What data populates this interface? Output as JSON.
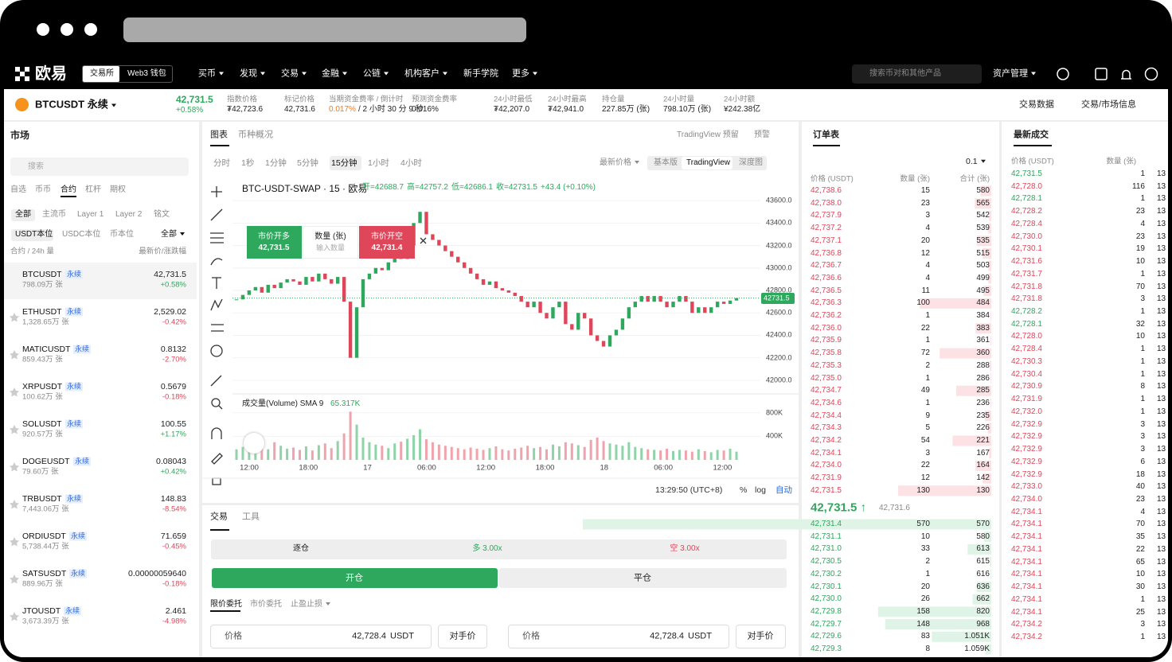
{
  "nav": {
    "logo": "欧易",
    "tabs": [
      "交易所",
      "Web3 钱包"
    ],
    "menu": [
      "买币",
      "发现",
      "交易",
      "金融",
      "公链",
      "机构客户",
      "新手学院",
      "更多"
    ],
    "search": "搜索币对和其他产品",
    "assets": "资产管理"
  },
  "ticker": {
    "symbol": "BTCUSDT 永续",
    "price": "42,731.5",
    "change": "+0.58%",
    "stats": [
      {
        "label": "指数价格",
        "value": [
          "₮42,723.6"
        ]
      },
      {
        "label": "标记价格",
        "value": [
          "42,731.6"
        ]
      },
      {
        "label": "当期资金费率 / 倒计时",
        "value": [
          "0.017%",
          "/ 2 小时 30 分 9 秒"
        ]
      },
      {
        "label": "预测资金费率",
        "value": [
          "0.016%"
        ]
      },
      {
        "label": "24小时最低",
        "value": [
          "₮42,207.0"
        ]
      },
      {
        "label": "24小时最高",
        "value": [
          "₮42,941.0"
        ]
      },
      {
        "label": "持仓量",
        "value": [
          "227.85万 (张)"
        ]
      },
      {
        "label": "24小时量",
        "value": [
          "798.10万 (张)"
        ]
      },
      {
        "label": "24小时额",
        "value": [
          "¥242.38亿"
        ]
      }
    ],
    "links": [
      "交易数据",
      "交易/市场信息"
    ]
  },
  "market": {
    "title": "市场",
    "search": "搜索",
    "tabs": [
      "自选",
      "币币",
      "合约",
      "杠杆",
      "期权"
    ],
    "subtabs": [
      "全部",
      "主流币",
      "Layer 1",
      "Layer 2",
      "铭文"
    ],
    "filters": [
      "USDT本位",
      "USDC本位",
      "币本位",
      "全部"
    ],
    "headers": [
      "合约 / 24h 量",
      "最新价/涨跌幅"
    ],
    "rows": [
      [
        "BTCUSDT",
        "永续",
        "798.09万 张",
        "42,731.5",
        "+0.58%"
      ],
      [
        "ETHUSDT",
        "永续",
        "1,328.65万 张",
        "2,529.02",
        "-0.42%"
      ],
      [
        "MATICUSDT",
        "永续",
        "859.43万 张",
        "0.8132",
        "-2.70%"
      ],
      [
        "XRPUSDT",
        "永续",
        "100.62万 张",
        "0.5679",
        "-0.18%"
      ],
      [
        "SOLUSDT",
        "永续",
        "920.57万 张",
        "100.55",
        "+1.17%"
      ],
      [
        "DOGEUSDT",
        "永续",
        "79.60万 张",
        "0.08043",
        "+0.42%"
      ],
      [
        "TRBUSDT",
        "永续",
        "7,443.06万 张",
        "148.83",
        "-8.54%"
      ],
      [
        "ORDIUSDT",
        "永续",
        "5,738.44万 张",
        "71.659",
        "-0.45%"
      ],
      [
        "SATSUSDT",
        "永续",
        "889.96万 张",
        "0.00000059640",
        "-0.18%"
      ],
      [
        "JTOUSDT",
        "永续",
        "3,673.39万 张",
        "2.461",
        "-4.98%"
      ]
    ]
  },
  "chart": {
    "tabs": [
      "图表",
      "币种概况"
    ],
    "toolbar_right": [
      "TradingView 预留",
      "预警"
    ],
    "intervals": [
      "分时",
      "1秒",
      "1分钟",
      "5分钟",
      "15分钟",
      "1小时",
      "4小时"
    ],
    "price_type": "最新价格",
    "views": [
      "基本版",
      "TradingView",
      "深度图"
    ],
    "symbol": "BTC-USDT-SWAP · 15 · 欧易",
    "ohlc": [
      "开=42688.7",
      "高=42757.2",
      "低=42686.1",
      "收=42731.5",
      "+43.4 (+0.10%)"
    ],
    "order_buttons": {
      "buy": "市价开多",
      "buy_price": "42,731.5",
      "qty": "数量 (张)",
      "qty_placeholder": "输入数量",
      "sell": "市价开空",
      "sell_price": "42,731.4"
    },
    "last_price": {
      "value": 42731.5,
      "label": "42731.5"
    },
    "ylim": [
      41900,
      43700
    ],
    "yticks": [
      {
        "value": 43600,
        "label": "43600.0"
      },
      {
        "value": 43400,
        "label": "43400.0"
      },
      {
        "value": 43200,
        "label": "43200.0"
      },
      {
        "value": 43000,
        "label": "43000.0"
      },
      {
        "value": 42800,
        "label": "42800.0"
      },
      {
        "value": 42600,
        "label": "42600.0"
      },
      {
        "value": 42400,
        "label": "42400.0"
      },
      {
        "value": 42200,
        "label": "42200.0"
      },
      {
        "value": 42000,
        "label": "42000.0"
      }
    ],
    "closes": [
      42720,
      42760,
      42800,
      42830,
      42780,
      42850,
      42820,
      42870,
      42900,
      42880,
      42850,
      42920,
      42880,
      42950,
      42900,
      42860,
      42920,
      42700,
      42200,
      42650,
      42900,
      42950,
      43000,
      42980,
      43050,
      43100,
      43080,
      43200,
      43400,
      43500,
      43300,
      43250,
      43200,
      43150,
      43100,
      43050,
      43000,
      42950,
      42900,
      42850,
      42880,
      42820,
      42800,
      42780,
      42750,
      42700,
      42650,
      42700,
      42600,
      42550,
      42650,
      42700,
      42500,
      42450,
      42600,
      42550,
      42400,
      42350,
      42300,
      42400,
      42450,
      42550,
      42650,
      42700,
      42750,
      42700,
      42750,
      42700,
      42650,
      42700,
      42750,
      42700,
      42600,
      42650,
      42600,
      42650,
      42700,
      42680,
      42710,
      42731.5
    ],
    "volume_title": "成交量(Volume) SMA 9",
    "volume_sma": "65.317K",
    "vlim": [
      0,
      1000000
    ],
    "vticks": [
      {
        "value": 800000,
        "label": "800K"
      },
      {
        "value": 400000,
        "label": "400K"
      }
    ],
    "volumes": [
      180000,
      220000,
      150000,
      200000,
      260000,
      180000,
      300000,
      240000,
      190000,
      210000,
      170000,
      230000,
      160000,
      250000,
      280000,
      200000,
      320000,
      450000,
      820000,
      600000,
      380000,
      300000,
      260000,
      240000,
      200000,
      280000,
      310000,
      360000,
      420000,
      520000,
      350000,
      300000,
      260000,
      240000,
      220000,
      200000,
      180000,
      210000,
      190000,
      170000,
      200000,
      230000,
      180000,
      160000,
      190000,
      210000,
      240000,
      200000,
      220000,
      180000,
      260000,
      230000,
      300000,
      280000,
      250000,
      220000,
      340000,
      380000,
      320000,
      280000,
      260000,
      240000,
      300000,
      220000,
      200000,
      180000,
      170000,
      160000,
      190000,
      150000,
      170000,
      160000,
      140000,
      180000,
      150000,
      130000,
      170000,
      160000,
      190000,
      140000
    ],
    "xlabels": [
      "12:00",
      "18:00",
      "17",
      "06:00",
      "12:00",
      "18:00",
      "18",
      "06:00",
      "12:00"
    ],
    "footer": [
      "13:29:50 (UTC+8)",
      "%",
      "log",
      "自动"
    ]
  },
  "trade": {
    "tabs": [
      "交易",
      "工具"
    ],
    "modes": [
      "逐仓",
      "多 3.00x",
      "空 3.00x"
    ],
    "actions": [
      "开仓",
      "平仓"
    ],
    "order_tabs": [
      "限价委托",
      "市价委托",
      "止盈止损"
    ],
    "inputs": [
      {
        "label": "价格",
        "value": "42,728.4",
        "unit": "USDT",
        "button": "对手价"
      },
      {
        "label": "价格",
        "value": "42,728.4",
        "unit": "USDT",
        "button": "对手价"
      }
    ]
  },
  "orderbook": {
    "title": "订单表",
    "step": "0.1",
    "headers": [
      "价格 (USDT)",
      "数量 (张)",
      "合计 (张)"
    ],
    "asks": [
      [
        "42,738.6",
        15,
        "580"
      ],
      [
        "42,738.0",
        23,
        "565"
      ],
      [
        "42,737.9",
        3,
        "542"
      ],
      [
        "42,737.2",
        4,
        "539"
      ],
      [
        "42,737.1",
        20,
        "535"
      ],
      [
        "42,736.8",
        12,
        "515"
      ],
      [
        "42,736.7",
        4,
        "503"
      ],
      [
        "42,736.6",
        4,
        "499"
      ],
      [
        "42,736.5",
        11,
        "495"
      ],
      [
        "42,736.3",
        100,
        "484"
      ],
      [
        "42,736.2",
        1,
        "384"
      ],
      [
        "42,736.0",
        22,
        "383"
      ],
      [
        "42,735.9",
        1,
        "361"
      ],
      [
        "42,735.8",
        72,
        "360"
      ],
      [
        "42,735.3",
        2,
        "288"
      ],
      [
        "42,735.0",
        1,
        "286"
      ],
      [
        "42,734.7",
        49,
        "285"
      ],
      [
        "42,734.6",
        1,
        "236"
      ],
      [
        "42,734.4",
        9,
        "235"
      ],
      [
        "42,734.3",
        5,
        "226"
      ],
      [
        "42,734.2",
        54,
        "221"
      ],
      [
        "42,734.1",
        3,
        "167"
      ],
      [
        "42,734.0",
        22,
        "164"
      ],
      [
        "42,731.9",
        12,
        "142"
      ],
      [
        "42,731.5",
        130,
        "130"
      ]
    ],
    "last": "42,731.5 ↑",
    "mark": "42,731.6",
    "bids": [
      [
        "42,731.4",
        570,
        "570"
      ],
      [
        "42,731.1",
        10,
        "580"
      ],
      [
        "42,731.0",
        33,
        "613"
      ],
      [
        "42,730.5",
        2,
        "615"
      ],
      [
        "42,730.2",
        1,
        "616"
      ],
      [
        "42,730.1",
        20,
        "636"
      ],
      [
        "42,730.0",
        26,
        "662"
      ],
      [
        "42,729.8",
        158,
        "820"
      ],
      [
        "42,729.7",
        148,
        "968"
      ],
      [
        "42,729.6",
        83,
        "1.051K"
      ],
      [
        "42,729.3",
        8,
        "1.059K"
      ]
    ]
  },
  "trades": {
    "title": "最新成交",
    "headers": [
      "价格 (USDT)",
      "数量 (张)"
    ],
    "rows": [
      [
        "42,731.5",
        1,
        "13",
        "buy"
      ],
      [
        "42,728.0",
        116,
        "13",
        "sell"
      ],
      [
        "42,728.1",
        1,
        "13",
        "buy"
      ],
      [
        "42,728.2",
        23,
        "13",
        "sell"
      ],
      [
        "42,728.4",
        4,
        "13",
        "sell"
      ],
      [
        "42,730.0",
        23,
        "13",
        "sell"
      ],
      [
        "42,730.1",
        19,
        "13",
        "sell"
      ],
      [
        "42,731.6",
        10,
        "13",
        "sell"
      ],
      [
        "42,731.7",
        1,
        "13",
        "sell"
      ],
      [
        "42,731.8",
        70,
        "13",
        "sell"
      ],
      [
        "42,731.8",
        3,
        "13",
        "sell"
      ],
      [
        "42,728.2",
        1,
        "13",
        "buy"
      ],
      [
        "42,728.1",
        32,
        "13",
        "buy"
      ],
      [
        "42,728.0",
        10,
        "13",
        "sell"
      ],
      [
        "42,728.4",
        1,
        "13",
        "sell"
      ],
      [
        "42,730.3",
        1,
        "13",
        "sell"
      ],
      [
        "42,730.4",
        1,
        "13",
        "sell"
      ],
      [
        "42,730.9",
        8,
        "13",
        "sell"
      ],
      [
        "42,731.9",
        1,
        "13",
        "sell"
      ],
      [
        "42,732.0",
        1,
        "13",
        "sell"
      ],
      [
        "42,732.9",
        3,
        "13",
        "sell"
      ],
      [
        "42,732.9",
        3,
        "13",
        "sell"
      ],
      [
        "42,732.9",
        3,
        "13",
        "sell"
      ],
      [
        "42,732.9",
        6,
        "13",
        "sell"
      ],
      [
        "42,732.9",
        18,
        "13",
        "sell"
      ],
      [
        "42,733.0",
        40,
        "13",
        "sell"
      ],
      [
        "42,734.0",
        23,
        "13",
        "sell"
      ],
      [
        "42,734.1",
        4,
        "13",
        "sell"
      ],
      [
        "42,734.1",
        70,
        "13",
        "sell"
      ],
      [
        "42,734.1",
        35,
        "13",
        "sell"
      ],
      [
        "42,734.1",
        22,
        "13",
        "sell"
      ],
      [
        "42,734.1",
        65,
        "13",
        "sell"
      ],
      [
        "42,734.1",
        10,
        "13",
        "sell"
      ],
      [
        "42,734.1",
        30,
        "13",
        "sell"
      ],
      [
        "42,734.1",
        1,
        "13",
        "sell"
      ],
      [
        "42,734.1",
        25,
        "13",
        "sell"
      ],
      [
        "42,734.2",
        3,
        "13",
        "sell"
      ],
      [
        "42,734.2",
        1,
        "13",
        "sell"
      ]
    ]
  }
}
